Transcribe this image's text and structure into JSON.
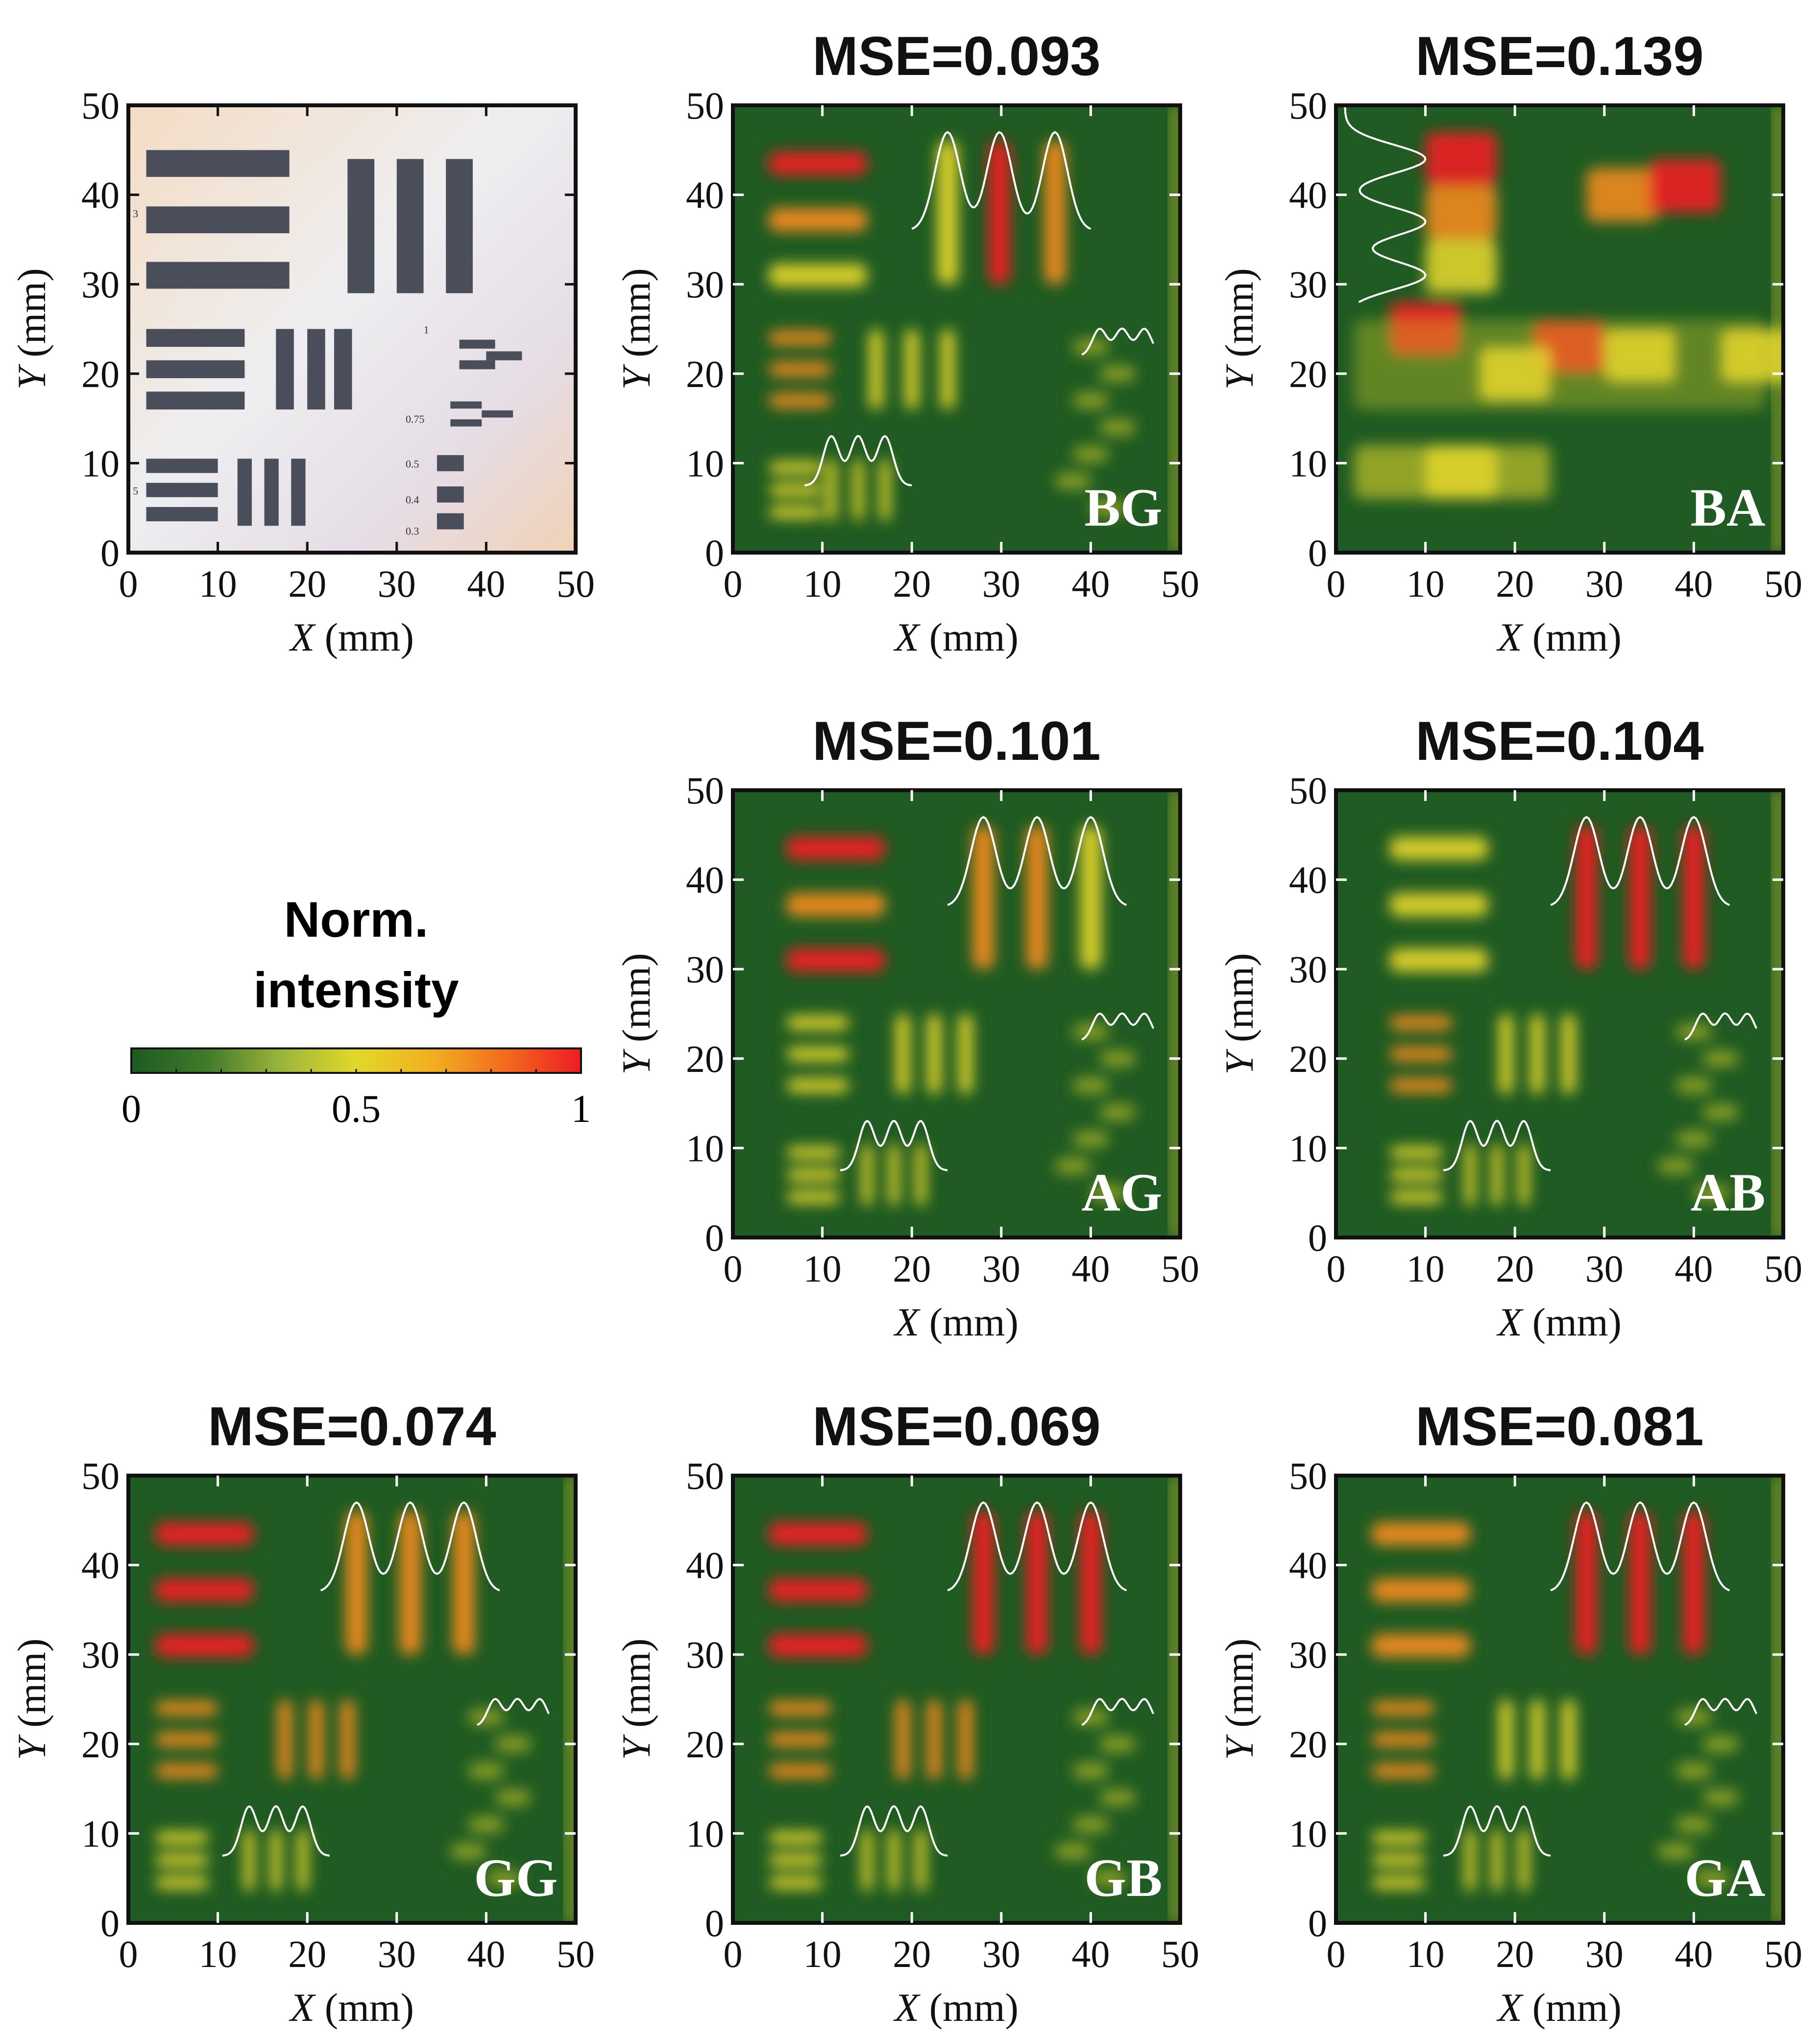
{
  "figure": {
    "colorbar": {
      "title_line1": "Norm.",
      "title_line2": "intensity",
      "tick_labels": [
        "0",
        "0.5",
        "1"
      ],
      "stops": [
        "#1e5a22",
        "#3f7a2a",
        "#9bb53a",
        "#e2d82a",
        "#f2b021",
        "#f36a1e",
        "#ee1c24"
      ]
    },
    "photo_tick_labels": [
      "1",
      "0.75",
      "0.5",
      "0.4",
      "0.3",
      "5",
      "3"
    ],
    "axis_unit": "(mm)",
    "x_var": "X",
    "y_var": "Y"
  },
  "chart_data": [
    {
      "type": "heatmap",
      "id": "photo",
      "title": "",
      "label": "",
      "xlabel": "X (mm)",
      "ylabel": "Y (mm)",
      "xlim": [
        0,
        50
      ],
      "ylim": [
        0,
        50
      ],
      "ticks": [
        0,
        10,
        20,
        30,
        40,
        50
      ],
      "tick_labels": [
        "0",
        "10",
        "20",
        "30",
        "40",
        "50"
      ]
    },
    {
      "type": "heatmap",
      "id": "BG",
      "title": "MSE=0.093",
      "label": "BG",
      "xlabel": "X (mm)",
      "ylabel": "Y (mm)",
      "xlim": [
        0,
        50
      ],
      "ylim": [
        0,
        50
      ],
      "ticks": [
        0,
        10,
        20,
        30,
        40,
        50
      ],
      "tick_labels": [
        "0",
        "10",
        "20",
        "30",
        "40",
        "50"
      ]
    },
    {
      "type": "heatmap",
      "id": "BA",
      "title": "MSE=0.139",
      "label": "BA",
      "xlabel": "X (mm)",
      "ylabel": "Y (mm)",
      "xlim": [
        0,
        50
      ],
      "ylim": [
        0,
        50
      ],
      "ticks": [
        0,
        10,
        20,
        30,
        40,
        50
      ],
      "tick_labels": [
        "0",
        "10",
        "20",
        "30",
        "40",
        "50"
      ]
    },
    {
      "type": "heatmap",
      "id": "AG",
      "title": "MSE=0.101",
      "label": "AG",
      "xlabel": "X (mm)",
      "ylabel": "Y (mm)",
      "xlim": [
        0,
        50
      ],
      "ylim": [
        0,
        50
      ],
      "ticks": [
        0,
        10,
        20,
        30,
        40,
        50
      ],
      "tick_labels": [
        "0",
        "10",
        "20",
        "30",
        "40",
        "50"
      ]
    },
    {
      "type": "heatmap",
      "id": "AB",
      "title": "MSE=0.104",
      "label": "AB",
      "xlabel": "X (mm)",
      "ylabel": "Y (mm)",
      "xlim": [
        0,
        50
      ],
      "ylim": [
        0,
        50
      ],
      "ticks": [
        0,
        10,
        20,
        30,
        40,
        50
      ],
      "tick_labels": [
        "0",
        "10",
        "20",
        "30",
        "40",
        "50"
      ]
    },
    {
      "type": "heatmap",
      "id": "GG",
      "title": "MSE=0.074",
      "label": "GG",
      "xlabel": "X (mm)",
      "ylabel": "Y (mm)",
      "xlim": [
        0,
        50
      ],
      "ylim": [
        0,
        50
      ],
      "ticks": [
        0,
        10,
        20,
        30,
        40,
        50
      ],
      "tick_labels": [
        "0",
        "10",
        "20",
        "30",
        "40",
        "50"
      ]
    },
    {
      "type": "heatmap",
      "id": "GB",
      "title": "MSE=0.069",
      "label": "GB",
      "xlabel": "X (mm)",
      "ylabel": "Y (mm)",
      "xlim": [
        0,
        50
      ],
      "ylim": [
        0,
        50
      ],
      "ticks": [
        0,
        10,
        20,
        30,
        40,
        50
      ],
      "tick_labels": [
        "0",
        "10",
        "20",
        "30",
        "40",
        "50"
      ]
    },
    {
      "type": "heatmap",
      "id": "GA",
      "title": "MSE=0.081",
      "label": "GA",
      "xlabel": "X (mm)",
      "ylabel": "Y (mm)",
      "xlim": [
        0,
        50
      ],
      "ylim": [
        0,
        50
      ],
      "ticks": [
        0,
        10,
        20,
        30,
        40,
        50
      ],
      "tick_labels": [
        "0",
        "10",
        "20",
        "30",
        "40",
        "50"
      ]
    }
  ]
}
